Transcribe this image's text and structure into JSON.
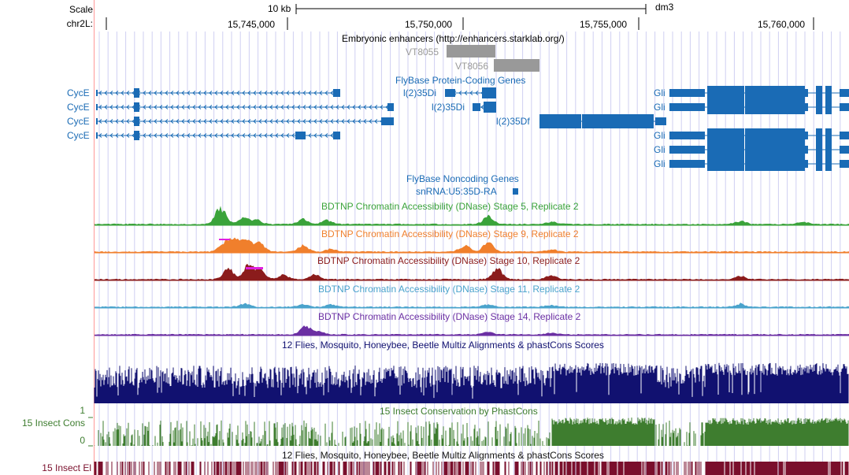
{
  "header": {
    "scale_label": "Scale",
    "chrom_label": "chr2L:",
    "scale_bar_text": "10 kb",
    "assembly": "dm3",
    "positions": [
      "15,745,000",
      "15,750,000",
      "15,755,000",
      "15,760,000"
    ]
  },
  "tracks": {
    "enhancers": {
      "title": "Embryonic enhancers (http://enhancers.starklab.org/)",
      "items": [
        "VT8055",
        "VT8056"
      ],
      "color": "#999999"
    },
    "genes": {
      "title": "FlyBase Protein-Coding Genes",
      "labels": [
        "CycE",
        "CycE",
        "CycE",
        "CycE",
        "l(2)35Di",
        "l(2)35Di",
        "l(2)35Df",
        "Gli",
        "Gli",
        "Gli",
        "Gli",
        "Gli"
      ],
      "color": "#1a6bb5"
    },
    "noncoding": {
      "title": "FlyBase Noncoding Genes",
      "labels": [
        "snRNA:U5:35D-RA"
      ]
    },
    "dnase": [
      {
        "title": "BDTNP Chromatin Accessibility (DNase) Stage 5, Replicate 2",
        "color": "#3aa33a"
      },
      {
        "title": "BDTNP Chromatin Accessibility (DNase) Stage 9, Replicate 2",
        "color": "#f07f2c"
      },
      {
        "title": "BDTNP Chromatin Accessibility (DNase) Stage 10, Replicate 2",
        "color": "#8b1c1c"
      },
      {
        "title": "BDTNP Chromatin Accessibility (DNase) Stage 11, Replicate 2",
        "color": "#4aa3cc"
      },
      {
        "title": "BDTNP Chromatin Accessibility (DNase) Stage 14, Replicate 2",
        "color": "#6b2fa3"
      }
    ],
    "multiz": {
      "title": "12 Flies, Mosquito, Honeybee, Beetle Multiz Alignments & phastCons Scores",
      "color": "#111170"
    },
    "phastcons": {
      "title": "15 Insect Conservation by PhastCons",
      "side_label": "15 Insect Cons",
      "y_max": "1",
      "y_min": "0",
      "color": "#3e7d2f"
    },
    "elements": {
      "title": "12 Flies, Mosquito, Honeybee, Beetle Multiz Alignments & phastCons Scores",
      "side_label": "15 Insect El",
      "color": "#7a0f2c"
    }
  },
  "colors": {
    "highlight_line": "#ff9999",
    "guide_lines": "#cfcff2"
  }
}
